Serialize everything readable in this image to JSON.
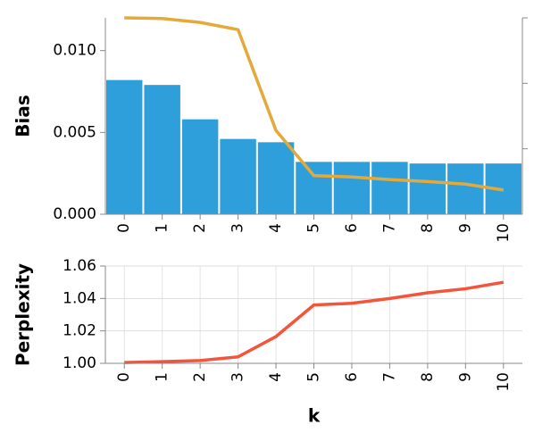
{
  "chart_data": [
    {
      "type": "bar",
      "y_label": "Bias",
      "y_label_color": "#2f9fdb",
      "categories": [
        "0",
        "1",
        "2",
        "3",
        "4",
        "5",
        "6",
        "7",
        "8",
        "9",
        "10"
      ],
      "series": [
        {
          "type": "bar",
          "color": "#2f9fdb",
          "values": [
            0.0082,
            0.0079,
            0.0058,
            0.0046,
            0.0044,
            0.0032,
            0.0032,
            0.0032,
            0.0031,
            0.0031,
            0.0031
          ]
        },
        {
          "type": "line",
          "axis": "y2",
          "color": "#e3a93a",
          "values": [
            3.0,
            2.99,
            2.93,
            2.82,
            1.28,
            0.59,
            0.57,
            0.53,
            0.5,
            0.46,
            0.37
          ]
        }
      ],
      "ylim": [
        0,
        0.012
      ],
      "yticks": [
        {
          "value": 0,
          "label": "0.000"
        },
        {
          "value": 0.005,
          "label": "0.005"
        },
        {
          "value": 0.01,
          "label": "0.010"
        }
      ],
      "y2lim": [
        0,
        3
      ],
      "y2ticks": [
        1,
        2,
        3
      ],
      "grid": false
    },
    {
      "type": "line",
      "y_label": "Perplexity",
      "y_label_color": "#f4553a",
      "x_label": "k",
      "categories": [
        "0",
        "1",
        "2",
        "3",
        "4",
        "5",
        "6",
        "7",
        "8",
        "9",
        "10"
      ],
      "color": "#f4553a",
      "values": [
        1.0005,
        1.001,
        1.0017,
        1.004,
        1.0165,
        1.036,
        1.037,
        1.04,
        1.0435,
        1.046,
        1.05
      ],
      "ylim": [
        1.0,
        1.06
      ],
      "yticks": [
        {
          "value": 1.0,
          "label": "1.00"
        },
        {
          "value": 1.02,
          "label": "1.02"
        },
        {
          "value": 1.04,
          "label": "1.04"
        },
        {
          "value": 1.06,
          "label": "1.06"
        }
      ],
      "grid": true
    }
  ]
}
